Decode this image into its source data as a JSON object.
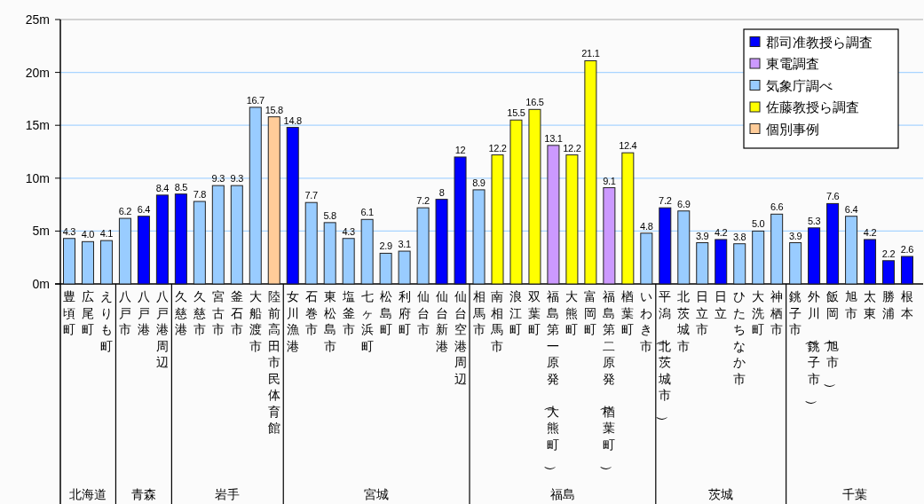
{
  "chart_data": {
    "type": "bar",
    "stacked": true,
    "grid": "y",
    "legend": "top right",
    "categories": [
      "豊頃町",
      "広尾町",
      "えりも町",
      "八戸市",
      "八戸港",
      "八戸港周辺",
      "久慈港",
      "久慈市",
      "宮古市",
      "釜石市",
      "大船渡市",
      "陸前高田市民体育館",
      "女川漁港",
      "石巻市",
      "東松島市",
      "塩釜市",
      "七ヶ浜町",
      "松島町",
      "利府町",
      "仙台市",
      "仙台新港",
      "仙台空港周辺",
      "相馬市",
      "南相馬市",
      "浪江町",
      "双葉町",
      "福島第一原発（大熊町）",
      "大熊町",
      "富岡町",
      "福島第二原発（楢葉町）",
      "楢葉町",
      "いわき市",
      "平潟（北茨城市）",
      "北茨城市",
      "日立市",
      "日立",
      "ひたちなか市",
      "大洗町",
      "神栖市",
      "銚子市",
      "外川（銚子市）",
      "飯岡（旭市）",
      "旭市",
      "太東",
      "勝浦",
      "根本"
    ],
    "ylim": [
      0,
      25
    ],
    "yticks": [
      {
        "value": 0,
        "label": "0m"
      },
      {
        "value": 5,
        "label": "5m"
      },
      {
        "value": 10,
        "label": "10m"
      },
      {
        "value": 15,
        "label": "15m"
      },
      {
        "value": 20,
        "label": "20m"
      },
      {
        "value": 25,
        "label": "25m"
      }
    ],
    "series": [
      {
        "name": "郡司准教授ら調査",
        "color": "#0000ff",
        "values": [
          null,
          null,
          null,
          null,
          6.4,
          8.4,
          8.5,
          null,
          null,
          null,
          null,
          null,
          14.8,
          null,
          null,
          null,
          null,
          null,
          null,
          null,
          8,
          12,
          null,
          null,
          null,
          null,
          null,
          null,
          null,
          null,
          null,
          null,
          7.2,
          null,
          null,
          4.2,
          null,
          null,
          null,
          null,
          5.3,
          7.6,
          null,
          4.2,
          2.2,
          2.6
        ],
        "value_labels": [
          null,
          null,
          null,
          null,
          "6.4",
          "8.4",
          "8.5",
          null,
          null,
          null,
          null,
          null,
          "14.8",
          null,
          null,
          null,
          null,
          null,
          null,
          null,
          "8",
          "12",
          null,
          null,
          null,
          null,
          null,
          null,
          null,
          null,
          null,
          null,
          "7.2",
          null,
          null,
          "4.2",
          null,
          null,
          null,
          null,
          "5.3",
          "7.6",
          null,
          "4.2",
          "2.2",
          "2.6"
        ]
      },
      {
        "name": "東電調査",
        "color": "#cc99ff",
        "values": [
          null,
          null,
          null,
          null,
          null,
          null,
          null,
          null,
          null,
          null,
          null,
          null,
          null,
          null,
          null,
          null,
          null,
          null,
          null,
          null,
          null,
          null,
          null,
          null,
          null,
          null,
          13.1,
          null,
          null,
          9.1,
          null,
          null,
          null,
          null,
          null,
          null,
          null,
          null,
          null,
          null,
          null,
          null,
          null,
          null,
          null,
          null
        ],
        "value_labels": [
          null,
          null,
          null,
          null,
          null,
          null,
          null,
          null,
          null,
          null,
          null,
          null,
          null,
          null,
          null,
          null,
          null,
          null,
          null,
          null,
          null,
          null,
          null,
          null,
          null,
          null,
          "13.1",
          null,
          null,
          "9.1",
          null,
          null,
          null,
          null,
          null,
          null,
          null,
          null,
          null,
          null,
          null,
          null,
          null,
          null,
          null,
          null
        ]
      },
      {
        "name": "気象庁調べ",
        "color": "#99ccff",
        "values": [
          4.3,
          4.0,
          4.1,
          6.2,
          null,
          null,
          null,
          7.8,
          9.3,
          9.3,
          16.7,
          null,
          null,
          7.7,
          5.8,
          4.3,
          6.1,
          2.9,
          3.1,
          7.2,
          null,
          null,
          8.9,
          null,
          null,
          null,
          null,
          null,
          null,
          null,
          null,
          4.8,
          null,
          6.9,
          3.9,
          null,
          3.8,
          5.0,
          6.6,
          3.9,
          null,
          null,
          6.4,
          null,
          null,
          null
        ],
        "value_labels": [
          "4.3",
          "4.0",
          "4.1",
          "6.2",
          null,
          null,
          null,
          "7.8",
          "9.3",
          "9.3",
          "16.7",
          null,
          null,
          "7.7",
          "5.8",
          "4.3",
          "6.1",
          "2.9",
          "3.1",
          "7.2",
          null,
          null,
          "8.9",
          null,
          null,
          null,
          null,
          null,
          null,
          null,
          null,
          "4.8",
          null,
          "6.9",
          "3.9",
          null,
          "3.8",
          "5.0",
          "6.6",
          "3.9",
          null,
          null,
          "6.4",
          null,
          null,
          null
        ]
      },
      {
        "name": "佐藤教授ら調査",
        "color": "#ffff00",
        "values": [
          null,
          null,
          null,
          null,
          null,
          null,
          null,
          null,
          null,
          null,
          null,
          null,
          null,
          null,
          null,
          null,
          null,
          null,
          null,
          null,
          null,
          null,
          null,
          12.2,
          15.5,
          16.5,
          null,
          12.2,
          21.1,
          null,
          12.4,
          null,
          null,
          null,
          null,
          null,
          null,
          null,
          null,
          null,
          null,
          null,
          null,
          null,
          null,
          null
        ],
        "value_labels": [
          null,
          null,
          null,
          null,
          null,
          null,
          null,
          null,
          null,
          null,
          null,
          null,
          null,
          null,
          null,
          null,
          null,
          null,
          null,
          null,
          null,
          null,
          null,
          "12.2",
          "15.5",
          "16.5",
          null,
          "12.2",
          "21.1",
          null,
          "12.4",
          null,
          null,
          null,
          null,
          null,
          null,
          null,
          null,
          null,
          null,
          null,
          null,
          null,
          null,
          null
        ]
      },
      {
        "name": "個別事例",
        "color": "#ffcc99",
        "values": [
          null,
          null,
          null,
          null,
          null,
          null,
          null,
          null,
          null,
          null,
          null,
          15.8,
          null,
          null,
          null,
          null,
          null,
          null,
          null,
          null,
          null,
          null,
          null,
          null,
          null,
          null,
          null,
          null,
          null,
          null,
          null,
          null,
          null,
          null,
          null,
          null,
          null,
          null,
          null,
          null,
          null,
          null,
          null,
          null,
          null,
          null
        ],
        "value_labels": [
          null,
          null,
          null,
          null,
          null,
          null,
          null,
          null,
          null,
          null,
          null,
          "15.8",
          null,
          null,
          null,
          null,
          null,
          null,
          null,
          null,
          null,
          null,
          null,
          null,
          null,
          null,
          null,
          null,
          null,
          null,
          null,
          null,
          null,
          null,
          null,
          null,
          null,
          null,
          null,
          null,
          null,
          null,
          null,
          null,
          null,
          null
        ]
      }
    ],
    "annotations": [
      "北海道",
      "青森",
      "岩手",
      "宮城",
      "福島",
      "茨城",
      "千葉"
    ]
  }
}
